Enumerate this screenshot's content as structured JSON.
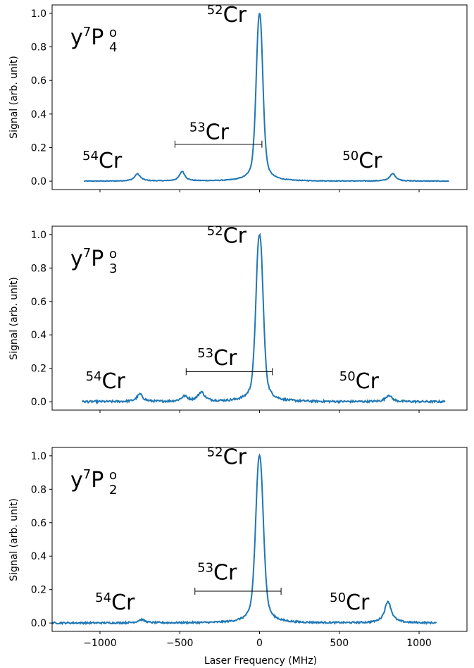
{
  "figure": {
    "xlabel": "Laser Frequency (MHz)",
    "ylabel": "Signal (arb. unit)",
    "line_color": "#1f77b4"
  },
  "chart_data": [
    {
      "type": "line",
      "state": {
        "base": "y",
        "mult": "7",
        "letter": "P",
        "sup": "o",
        "sub": "4"
      },
      "xlim": [
        -1300,
        1300
      ],
      "ylim": [
        -0.05,
        1.05
      ],
      "xticks": [
        -1000,
        -500,
        0,
        500,
        1000
      ],
      "yticks": [
        0.0,
        0.2,
        0.4,
        0.6,
        0.8,
        1.0
      ],
      "ytick_labels": [
        "0.0",
        "0.2",
        "0.4",
        "0.6",
        "0.8",
        "1.0"
      ],
      "show_xticklabels": false,
      "peaks": [
        {
          "x": -765,
          "h": 0.043,
          "w": 22
        },
        {
          "x": -485,
          "h": 0.057,
          "w": 20
        },
        {
          "x": 0,
          "h": 1.0,
          "w": 26
        },
        {
          "x": 835,
          "h": 0.045,
          "w": 22
        }
      ],
      "noise": 0.002,
      "x_range": [
        -1100,
        1190
      ],
      "labels": [
        {
          "id": "52",
          "mass": "52",
          "el": "Cr",
          "x": -330,
          "y": 0.95
        },
        {
          "id": "53",
          "mass": "53",
          "el": "Cr",
          "x": -440,
          "y": 0.25
        },
        {
          "id": "54",
          "mass": "54",
          "el": "Cr",
          "x": -1110,
          "y": 0.08
        },
        {
          "id": "50",
          "mass": "50",
          "el": "Cr",
          "x": 520,
          "y": 0.08
        }
      ],
      "bracket": {
        "x1": -530,
        "x2": 15,
        "y": 0.22
      }
    },
    {
      "type": "line",
      "state": {
        "base": "y",
        "mult": "7",
        "letter": "P",
        "sup": "o",
        "sub": "3"
      },
      "xlim": [
        -1300,
        1300
      ],
      "ylim": [
        -0.05,
        1.05
      ],
      "xticks": [
        -1000,
        -500,
        0,
        500,
        1000
      ],
      "yticks": [
        0.0,
        0.2,
        0.4,
        0.6,
        0.8,
        1.0
      ],
      "ytick_labels": [
        "0.0",
        "0.2",
        "0.4",
        "0.6",
        "0.8",
        "1.0"
      ],
      "show_xticklabels": false,
      "peaks": [
        {
          "x": -750,
          "h": 0.045,
          "w": 22
        },
        {
          "x": -470,
          "h": 0.03,
          "w": 25
        },
        {
          "x": -365,
          "h": 0.055,
          "w": 25
        },
        {
          "x": 0,
          "h": 1.0,
          "w": 28
        },
        {
          "x": 810,
          "h": 0.04,
          "w": 22
        }
      ],
      "noise": 0.006,
      "x_range": [
        -1110,
        1165
      ],
      "labels": [
        {
          "id": "52",
          "mass": "52",
          "el": "Cr",
          "x": -330,
          "y": 0.95
        },
        {
          "id": "53",
          "mass": "53",
          "el": "Cr",
          "x": -390,
          "y": 0.22
        },
        {
          "id": "54",
          "mass": "54",
          "el": "Cr",
          "x": -1090,
          "y": 0.08
        },
        {
          "id": "50",
          "mass": "50",
          "el": "Cr",
          "x": 500,
          "y": 0.08
        }
      ],
      "bracket": {
        "x1": -460,
        "x2": 80,
        "y": 0.18
      }
    },
    {
      "type": "line",
      "state": {
        "base": "y",
        "mult": "7",
        "letter": "P",
        "sup": "o",
        "sub": "2"
      },
      "xlim": [
        -1300,
        1300
      ],
      "ylim": [
        -0.05,
        1.05
      ],
      "xticks": [
        -1000,
        -500,
        0,
        500,
        1000
      ],
      "xtick_labels": [
        "−1000",
        "−500",
        "0",
        "500",
        "1000"
      ],
      "yticks": [
        0.0,
        0.2,
        0.4,
        0.6,
        0.8,
        1.0
      ],
      "ytick_labels": [
        "0.0",
        "0.2",
        "0.4",
        "0.6",
        "0.8",
        "1.0"
      ],
      "show_xticklabels": true,
      "peaks": [
        {
          "x": -740,
          "h": 0.02,
          "w": 25
        },
        {
          "x": 0,
          "h": 1.0,
          "w": 30
        },
        {
          "x": 805,
          "h": 0.13,
          "w": 25
        }
      ],
      "noise": 0.005,
      "x_range": [
        -1300,
        1110
      ],
      "labels": [
        {
          "id": "52",
          "mass": "52",
          "el": "Cr",
          "x": -330,
          "y": 0.95
        },
        {
          "id": "53",
          "mass": "53",
          "el": "Cr",
          "x": -390,
          "y": 0.26
        },
        {
          "id": "54",
          "mass": "54",
          "el": "Cr",
          "x": -1030,
          "y": 0.08
        },
        {
          "id": "50",
          "mass": "50",
          "el": "Cr",
          "x": 440,
          "y": 0.08
        }
      ],
      "bracket": {
        "x1": -405,
        "x2": 135,
        "y": 0.19
      }
    }
  ]
}
